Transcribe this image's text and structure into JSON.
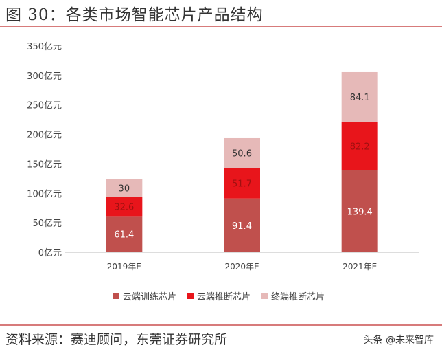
{
  "header": {
    "title": "图 30：各类市场智能芯片产品结构"
  },
  "footer": {
    "source": "资料来源：赛迪顾问，东莞证券研究所",
    "watermark": "头条 @未来智库"
  },
  "chart_data": {
    "type": "bar",
    "stacked": true,
    "categories": [
      "2019年E",
      "2020年E",
      "2021年E"
    ],
    "yticks": [
      "0亿元",
      "50亿元",
      "100亿元",
      "150亿元",
      "200亿元",
      "250亿元",
      "300亿元",
      "350亿元"
    ],
    "ylim": [
      0,
      350
    ],
    "grid": false,
    "legend_position": "bottom",
    "series": [
      {
        "name": "云端训练芯片",
        "values": [
          61.4,
          91.4,
          139.4
        ],
        "labels": [
          "61.4",
          "91.4",
          "139.4"
        ],
        "color": "#c0504d",
        "label_color": "#ffffff"
      },
      {
        "name": "云端推断芯片",
        "values": [
          32.6,
          51.7,
          82.2
        ],
        "labels": [
          "32.6",
          "51.7",
          "82.2"
        ],
        "color": "#e8151b",
        "label_color": "#a01010"
      },
      {
        "name": "终端推断芯片",
        "values": [
          30,
          50.6,
          84.1
        ],
        "labels": [
          "30",
          "50.6",
          "84.1"
        ],
        "color": "#e6b9b8",
        "label_color": "#333333"
      }
    ]
  }
}
